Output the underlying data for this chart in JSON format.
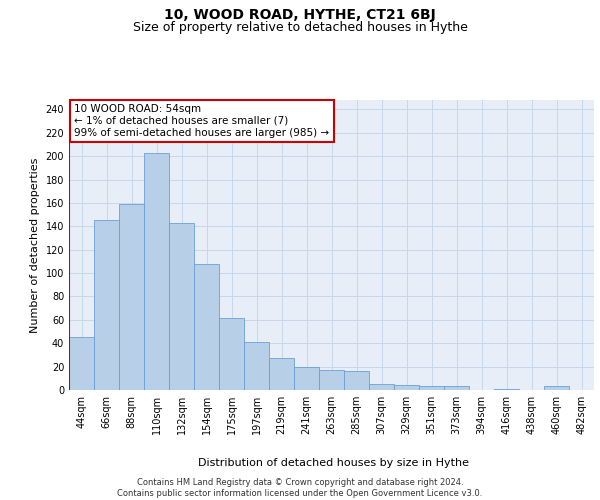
{
  "title": "10, WOOD ROAD, HYTHE, CT21 6BJ",
  "subtitle": "Size of property relative to detached houses in Hythe",
  "xlabel": "Distribution of detached houses by size in Hythe",
  "ylabel": "Number of detached properties",
  "categories": [
    "44sqm",
    "66sqm",
    "88sqm",
    "110sqm",
    "132sqm",
    "154sqm",
    "175sqm",
    "197sqm",
    "219sqm",
    "241sqm",
    "263sqm",
    "285sqm",
    "307sqm",
    "329sqm",
    "351sqm",
    "373sqm",
    "394sqm",
    "416sqm",
    "438sqm",
    "460sqm",
    "482sqm"
  ],
  "values": [
    45,
    145,
    159,
    203,
    143,
    108,
    62,
    41,
    27,
    20,
    17,
    16,
    5,
    4,
    3,
    3,
    0,
    1,
    0,
    3,
    0
  ],
  "bar_color": "#b8cfe8",
  "bar_edge_color": "#6a9fd8",
  "highlight_line_color": "#cc0000",
  "annotation_text": "10 WOOD ROAD: 54sqm\n← 1% of detached houses are smaller (7)\n99% of semi-detached houses are larger (985) →",
  "annotation_box_color": "#ffffff",
  "annotation_box_edge_color": "#cc0000",
  "ylim": [
    0,
    248
  ],
  "yticks": [
    0,
    20,
    40,
    60,
    80,
    100,
    120,
    140,
    160,
    180,
    200,
    220,
    240
  ],
  "grid_color": "#c8d8ec",
  "bg_color": "#e8eef8",
  "footer": "Contains HM Land Registry data © Crown copyright and database right 2024.\nContains public sector information licensed under the Open Government Licence v3.0.",
  "title_fontsize": 10,
  "subtitle_fontsize": 9,
  "label_fontsize": 8,
  "tick_fontsize": 7,
  "footer_fontsize": 6,
  "annotation_fontsize": 7.5
}
